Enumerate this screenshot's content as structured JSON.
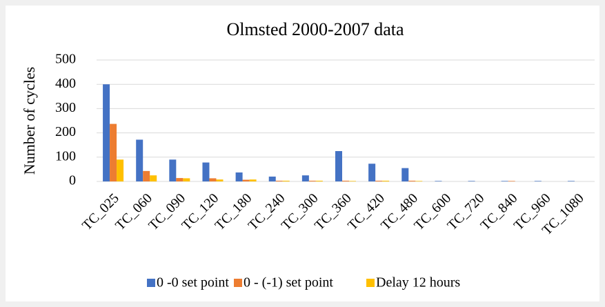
{
  "chart_data": {
    "type": "bar",
    "title": "Olmsted 2000-2007 data",
    "y_label": "Number of cycles",
    "categories": [
      "TC_025",
      "TC_060",
      "TC_090",
      "TC_120",
      "TC_180",
      "TC_240",
      "TC_300",
      "TC_360",
      "TC_420",
      "TC_480",
      "TC_600",
      "TC_720",
      "TC_840",
      "TC_960",
      "TC_1080"
    ],
    "series": [
      {
        "name": "0 -0 set point",
        "color": "#4472c4",
        "values": [
          400,
          172,
          90,
          78,
          37,
          20,
          25,
          125,
          73,
          55,
          2,
          2,
          2,
          2,
          2
        ]
      },
      {
        "name": "0 - (-1) set point",
        "color": "#ed7d31",
        "values": [
          237,
          43,
          14,
          13,
          7,
          3,
          3,
          3,
          3,
          3,
          0,
          0,
          2,
          0,
          0
        ]
      },
      {
        "name": "Delay 12 hours",
        "color": "#ffc000",
        "values": [
          90,
          25,
          13,
          8,
          8,
          3,
          3,
          2,
          3,
          2,
          0,
          0,
          0,
          0,
          0
        ]
      }
    ],
    "ylim": [
      0,
      500
    ],
    "yticks": [
      0,
      100,
      200,
      300,
      400,
      500
    ],
    "grid": true,
    "legend": "bottom"
  }
}
